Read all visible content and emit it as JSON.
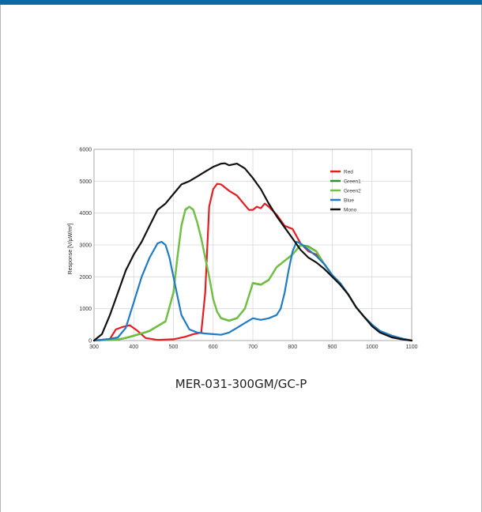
{
  "caption": "MER-031-300GM/GC-P",
  "chart_data": {
    "type": "line",
    "title": "",
    "xlabel": "",
    "ylabel": "Response [V/µW/m²]",
    "xlim": [
      300,
      1100
    ],
    "ylim": [
      0,
      6000
    ],
    "xticks": [
      "300",
      "400",
      "500",
      "600",
      "700",
      "800",
      "900",
      "1000",
      "1100"
    ],
    "yticks": [
      "0",
      "1000",
      "2000",
      "3000",
      "4000",
      "5000",
      "6000"
    ],
    "grid": true,
    "legend_position": "top-right",
    "series": [
      {
        "name": "Red",
        "color": "#e31d24",
        "x": [
          300,
          340,
          355,
          370,
          390,
          410,
          430,
          460,
          500,
          530,
          550,
          570,
          580,
          590,
          600,
          610,
          620,
          630,
          640,
          660,
          680,
          690,
          700,
          710,
          720,
          730,
          740,
          760,
          780,
          800,
          820,
          840,
          860,
          880,
          900,
          920,
          940,
          960,
          980,
          1000,
          1020,
          1050,
          1080,
          1100
        ],
        "y": [
          0,
          50,
          350,
          420,
          480,
          300,
          80,
          20,
          40,
          120,
          200,
          250,
          1500,
          4200,
          4750,
          4920,
          4900,
          4800,
          4700,
          4550,
          4250,
          4100,
          4100,
          4200,
          4150,
          4300,
          4200,
          3950,
          3600,
          3500,
          3050,
          2800,
          2700,
          2400,
          2050,
          1800,
          1450,
          1050,
          750,
          500,
          300,
          150,
          50,
          0
        ]
      },
      {
        "name": "Green1",
        "color": "#2f8f2f",
        "x": [
          300,
          360,
          380,
          400,
          420,
          440,
          460,
          480,
          500,
          510,
          520,
          530,
          540,
          550,
          560,
          570,
          580,
          590,
          600,
          610,
          620,
          640,
          660,
          680,
          690,
          700,
          720,
          740,
          760,
          780,
          800,
          820,
          840,
          860,
          880,
          900,
          920,
          940,
          960,
          980,
          1000,
          1020,
          1050,
          1080,
          1100
        ],
        "y": [
          0,
          30,
          80,
          150,
          220,
          300,
          450,
          600,
          1500,
          2600,
          3600,
          4100,
          4200,
          4100,
          3700,
          3200,
          2600,
          2000,
          1300,
          900,
          700,
          620,
          700,
          1000,
          1400,
          1800,
          1750,
          1900,
          2300,
          2500,
          2700,
          3000,
          2950,
          2800,
          2400,
          2050,
          1800,
          1450,
          1050,
          750,
          500,
          300,
          150,
          50,
          0
        ]
      },
      {
        "name": "Green2",
        "color": "#74c040",
        "x": [
          300,
          360,
          380,
          400,
          420,
          440,
          460,
          480,
          500,
          510,
          520,
          530,
          540,
          550,
          560,
          570,
          580,
          590,
          600,
          610,
          620,
          640,
          660,
          680,
          690,
          700,
          720,
          740,
          760,
          780,
          800,
          820,
          840,
          860,
          880,
          900,
          920,
          940,
          960,
          980,
          1000,
          1020,
          1050,
          1080,
          1100
        ],
        "y": [
          0,
          40,
          90,
          160,
          230,
          310,
          460,
          610,
          1520,
          2620,
          3620,
          4120,
          4200,
          4110,
          3710,
          3210,
          2610,
          2010,
          1310,
          910,
          710,
          630,
          710,
          1010,
          1410,
          1810,
          1760,
          1910,
          2310,
          2510,
          2710,
          2980,
          2930,
          2790,
          2400,
          2050,
          1800,
          1450,
          1050,
          750,
          500,
          300,
          150,
          50,
          0
        ]
      },
      {
        "name": "Blue",
        "color": "#1f7bc4",
        "x": [
          300,
          340,
          360,
          380,
          400,
          420,
          440,
          460,
          470,
          480,
          490,
          500,
          510,
          520,
          540,
          560,
          580,
          600,
          620,
          640,
          660,
          680,
          700,
          720,
          740,
          760,
          770,
          780,
          790,
          800,
          810,
          820,
          840,
          860,
          880,
          900,
          920,
          940,
          960,
          980,
          1000,
          1020,
          1050,
          1080,
          1100
        ],
        "y": [
          0,
          50,
          100,
          400,
          1200,
          2000,
          2600,
          3050,
          3100,
          3000,
          2600,
          2000,
          1400,
          800,
          350,
          250,
          220,
          200,
          180,
          250,
          400,
          550,
          700,
          650,
          700,
          800,
          1000,
          1500,
          2200,
          2800,
          3100,
          3050,
          2850,
          2650,
          2400,
          2050,
          1800,
          1450,
          1050,
          750,
          500,
          300,
          150,
          50,
          0
        ]
      },
      {
        "name": "Mono",
        "color": "#111111",
        "x": [
          300,
          320,
          340,
          360,
          380,
          400,
          420,
          440,
          460,
          480,
          500,
          520,
          540,
          560,
          580,
          600,
          620,
          630,
          640,
          660,
          680,
          700,
          720,
          740,
          760,
          780,
          800,
          820,
          840,
          860,
          880,
          900,
          920,
          940,
          960,
          980,
          1000,
          1020,
          1050,
          1080,
          1100
        ],
        "y": [
          0,
          200,
          800,
          1500,
          2200,
          2700,
          3100,
          3600,
          4100,
          4300,
          4600,
          4900,
          5000,
          5150,
          5300,
          5450,
          5550,
          5560,
          5500,
          5550,
          5400,
          5100,
          4750,
          4300,
          3900,
          3550,
          3200,
          2850,
          2600,
          2450,
          2250,
          2000,
          1750,
          1450,
          1050,
          750,
          450,
          250,
          100,
          30,
          0
        ]
      }
    ]
  }
}
